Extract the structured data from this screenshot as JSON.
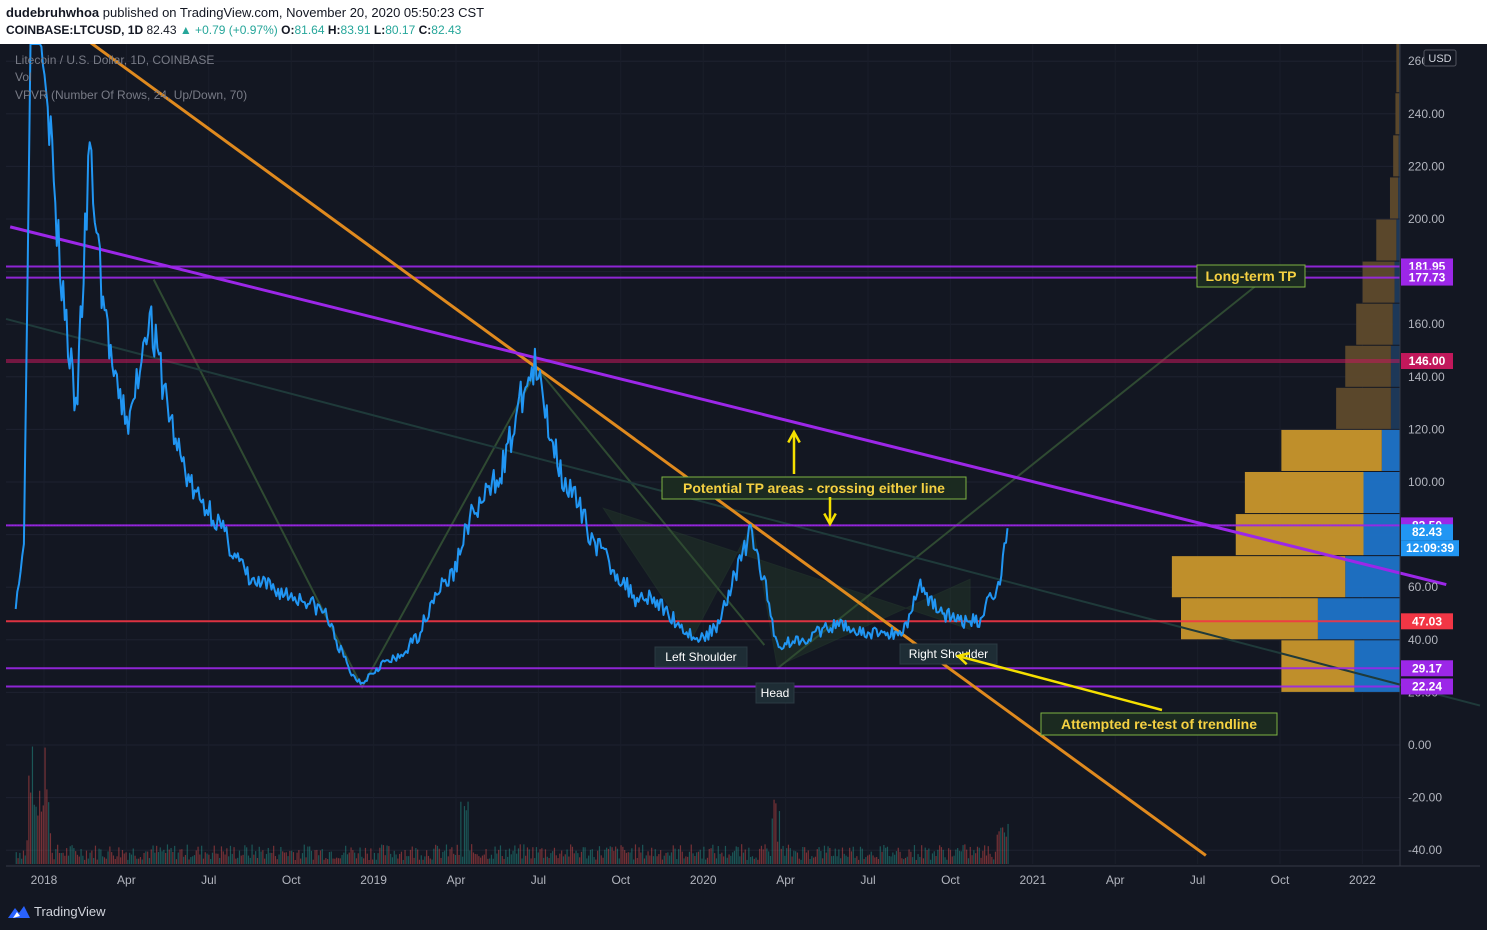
{
  "header": {
    "author": "dudebruhwhoa",
    "published": "published on TradingView.com, November 20, 2020 05:50:23 CST",
    "symbol": "COINBASE:LTCUSD, 1D",
    "last": "82.43",
    "change": "▲ +0.79 (+0.97%)",
    "o_label": "O:",
    "o_value": "81.64",
    "h_label": "H:",
    "h_value": "83.91",
    "l_label": "L:",
    "l_value": "80.17",
    "c_label": "C:",
    "c_value": "82.43"
  },
  "legend": {
    "title": "Litecoin / U.S. Dollar, 1D, COINBASE",
    "vol": "Vol",
    "vpvr": "VPVR (Number Of Rows, 24, Up/Down, 70)"
  },
  "footer": {
    "brand": "TradingView"
  },
  "colors": {
    "background": "#131722",
    "price_line": "#2196f3",
    "purple": "#9c27e8",
    "orange": "#e08a1e",
    "red": "#f23645",
    "annotation_text": "#f5d142",
    "annotation_border": "#7cb342"
  },
  "chart_data": {
    "type": "line",
    "title": "Litecoin / U.S. Dollar, 1D, COINBASE",
    "currency": "USD",
    "ylim": [
      -45,
      268
    ],
    "y_ticks": [
      -40,
      -20,
      0,
      20,
      40,
      60,
      80,
      100,
      120,
      140,
      160,
      180,
      200,
      220,
      240,
      260
    ],
    "y_tick_labels": [
      "-40.00",
      "-20.00",
      "0.00",
      "20.00",
      "40.00",
      "60.00",
      "80.00",
      "100.00",
      "120.00",
      "140.00",
      "160.00",
      "180.00",
      "200.00",
      "220.00",
      "240.00",
      "260"
    ],
    "x_ticks": [
      "2018",
      "Apr",
      "Jul",
      "Oct",
      "2019",
      "Apr",
      "Jul",
      "Oct",
      "2020",
      "Apr",
      "Jul",
      "Oct",
      "2021",
      "Apr",
      "Jul",
      "Oct",
      "2022"
    ],
    "price_series": {
      "name": "LTCUSD",
      "x": [
        "2017-12-01",
        "2017-12-10",
        "2017-12-19",
        "2018-01-05",
        "2018-01-15",
        "2018-02-05",
        "2018-02-20",
        "2018-03-05",
        "2018-03-20",
        "2018-04-05",
        "2018-04-25",
        "2018-05-05",
        "2018-05-25",
        "2018-06-15",
        "2018-07-05",
        "2018-07-25",
        "2018-08-15",
        "2018-09-05",
        "2018-09-25",
        "2018-10-15",
        "2018-11-05",
        "2018-11-20",
        "2018-12-05",
        "2018-12-15",
        "2019-01-05",
        "2019-01-25",
        "2019-02-15",
        "2019-03-05",
        "2019-03-25",
        "2019-04-10",
        "2019-05-01",
        "2019-05-20",
        "2019-06-10",
        "2019-06-22",
        "2019-07-05",
        "2019-07-20",
        "2019-08-05",
        "2019-08-25",
        "2019-09-20",
        "2019-10-10",
        "2019-10-25",
        "2019-11-15",
        "2019-12-05",
        "2019-12-18",
        "2020-01-05",
        "2020-01-20",
        "2020-02-13",
        "2020-02-28",
        "2020-03-13",
        "2020-03-25",
        "2020-04-15",
        "2020-05-05",
        "2020-05-25",
        "2020-06-15",
        "2020-07-05",
        "2020-07-20",
        "2020-08-01",
        "2020-08-15",
        "2020-09-05",
        "2020-09-20",
        "2020-10-05",
        "2020-10-20",
        "2020-11-01",
        "2020-11-10",
        "2020-11-20"
      ],
      "y": [
        55,
        75,
        330,
        250,
        195,
        125,
        225,
        175,
        135,
        122,
        165,
        148,
        115,
        95,
        88,
        75,
        62,
        60,
        57,
        55,
        50,
        37,
        26,
        24,
        31,
        33,
        42,
        58,
        65,
        85,
        95,
        108,
        135,
        143,
        125,
        105,
        93,
        78,
        65,
        56,
        57,
        50,
        43,
        40,
        44,
        58,
        81,
        62,
        38,
        39,
        41,
        44,
        46,
        42,
        43,
        42,
        45,
        61,
        52,
        48,
        47,
        47,
        57,
        60,
        82.43
      ]
    },
    "volume": {
      "name": "Vol",
      "description": "daily volume bars (relative)"
    },
    "horizontal_levels": [
      {
        "value": 181.95,
        "label": "181.95",
        "color": "#9c27e8"
      },
      {
        "value": 177.73,
        "label": "177.73",
        "color": "#9c27e8"
      },
      {
        "value": 146.0,
        "label": "146.00",
        "color": "#c2185b"
      },
      {
        "value": 83.5,
        "label": "83.50",
        "color": "#9c27e8"
      },
      {
        "value": 47.03,
        "label": "47.03",
        "color": "#f23645"
      },
      {
        "value": 29.17,
        "label": "29.17",
        "color": "#9c27e8"
      },
      {
        "value": 22.24,
        "label": "22.24",
        "color": "#9c27e8"
      }
    ],
    "price_labels": [
      {
        "label": "82.43",
        "color": "#2196f3",
        "value": 82.43
      },
      {
        "label": "12:09:39",
        "color": "#2196f3"
      }
    ],
    "trendlines": [
      {
        "name": "orange",
        "points": [
          [
            "2017-12-20",
            283
          ],
          [
            "2021-06-25",
            -42
          ]
        ]
      },
      {
        "name": "purple",
        "points": [
          [
            "2017-11-25",
            197
          ],
          [
            "2022-03-15",
            61
          ]
        ]
      }
    ],
    "vpvr": {
      "rows": [
        {
          "low": 40,
          "high": 56,
          "up": 15,
          "down": 9
        },
        {
          "low": 56,
          "high": 72,
          "up": 19,
          "down": 6
        },
        {
          "low": 72,
          "high": 88,
          "up": 14,
          "down": 4
        },
        {
          "low": 88,
          "high": 104,
          "up": 13,
          "down": 4
        },
        {
          "low": 104,
          "high": 120,
          "up": 11,
          "down": 2
        },
        {
          "low": 120,
          "high": 136,
          "up": 6,
          "down": 1
        },
        {
          "low": 136,
          "high": 152,
          "up": 5,
          "down": 1
        },
        {
          "low": 152,
          "high": 168,
          "up": 4,
          "down": 0.8
        },
        {
          "low": 168,
          "high": 184,
          "up": 3.5,
          "down": 0.6
        },
        {
          "low": 184,
          "high": 200,
          "up": 2.2,
          "down": 0.4
        },
        {
          "low": 200,
          "high": 216,
          "up": 0.9,
          "down": 0.2
        },
        {
          "low": 216,
          "high": 232,
          "up": 0.6,
          "down": 0.15
        },
        {
          "low": 232,
          "high": 248,
          "up": 0.4,
          "down": 0.1
        },
        {
          "low": 248,
          "high": 268,
          "up": 0.3,
          "down": 0.1
        },
        {
          "low": 20,
          "high": 40,
          "up": 8,
          "down": 5
        }
      ]
    },
    "annotations": {
      "long_term_tp": "Long-term TP",
      "potential_tp": "Potential TP areas - crossing either line",
      "left_shoulder": "Left Shoulder",
      "head": "Head",
      "right_shoulder": "Right Shoulder",
      "retest": "Attempted re-test of trendline"
    }
  }
}
